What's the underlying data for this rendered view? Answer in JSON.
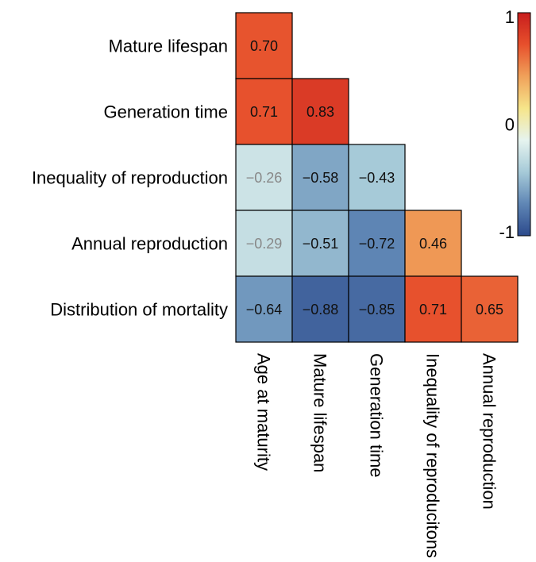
{
  "chart_data": {
    "type": "heatmap",
    "title": "",
    "row_labels": [
      "Mature lifespan",
      "Generation time",
      "Inequality of reproduction",
      "Annual reproduction",
      "Distribution of mortality"
    ],
    "column_labels": [
      "Age at maturity",
      "Mature lifespan",
      "Generation time",
      "Inequality of reproducitons",
      "Annual reproduction"
    ],
    "cells": [
      {
        "row": 0,
        "col": 0,
        "value": 0.7,
        "label": "0.70"
      },
      {
        "row": 1,
        "col": 0,
        "value": 0.71,
        "label": "0.71"
      },
      {
        "row": 1,
        "col": 1,
        "value": 0.83,
        "label": "0.83"
      },
      {
        "row": 2,
        "col": 0,
        "value": -0.26,
        "label": "−0.26"
      },
      {
        "row": 2,
        "col": 1,
        "value": -0.58,
        "label": "−0.58"
      },
      {
        "row": 2,
        "col": 2,
        "value": -0.43,
        "label": "−0.43"
      },
      {
        "row": 3,
        "col": 0,
        "value": -0.29,
        "label": "−0.29"
      },
      {
        "row": 3,
        "col": 1,
        "value": -0.51,
        "label": "−0.51"
      },
      {
        "row": 3,
        "col": 2,
        "value": -0.72,
        "label": "−0.72"
      },
      {
        "row": 3,
        "col": 3,
        "value": 0.46,
        "label": "0.46"
      },
      {
        "row": 4,
        "col": 0,
        "value": -0.64,
        "label": "−0.64"
      },
      {
        "row": 4,
        "col": 1,
        "value": -0.88,
        "label": "−0.88"
      },
      {
        "row": 4,
        "col": 2,
        "value": -0.85,
        "label": "−0.85"
      },
      {
        "row": 4,
        "col": 3,
        "value": 0.71,
        "label": "0.71"
      },
      {
        "row": 4,
        "col": 4,
        "value": 0.65,
        "label": "0.65"
      }
    ],
    "value_range": [
      -1,
      1
    ],
    "colorbar": {
      "ticks": [
        {
          "value": 1,
          "label": "1"
        },
        {
          "value": 0,
          "label": "0"
        },
        {
          "value": -1,
          "label": "-1"
        }
      ],
      "colors": [
        "#2c4a8c",
        "#5f86b5",
        "#a6cad8",
        "#e6f4ef",
        "#f6e58a",
        "#f0a15a",
        "#e7502c",
        "#c81d1d"
      ]
    },
    "low_magnitude_label_color": "#888888",
    "cell_border_color": "#000000",
    "legend_position": "right"
  }
}
